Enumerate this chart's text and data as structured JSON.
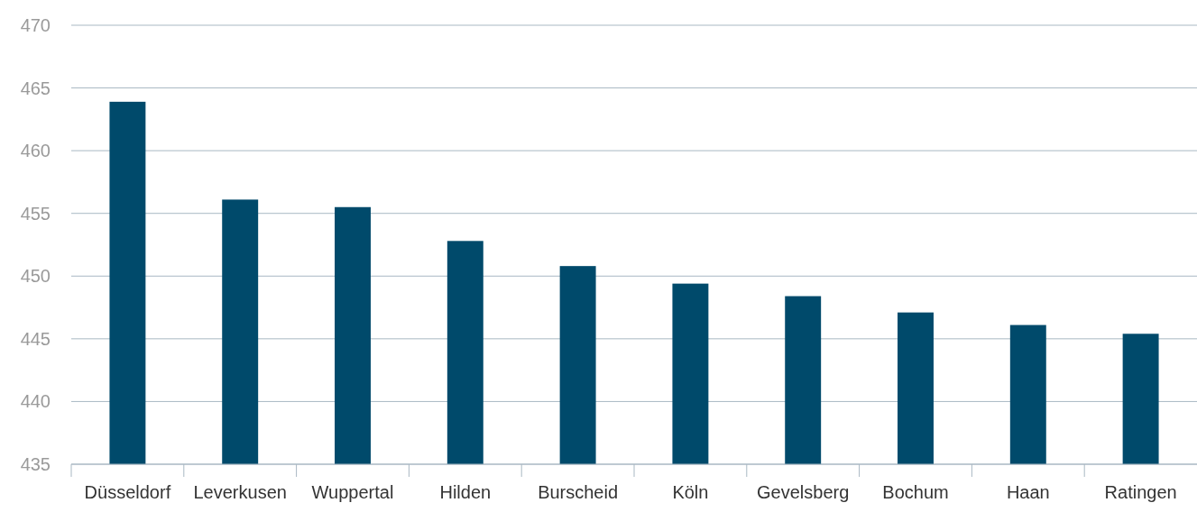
{
  "chart_data": {
    "type": "bar",
    "categories": [
      "Düsseldorf",
      "Leverkusen",
      "Wuppertal",
      "Hilden",
      "Burscheid",
      "Köln",
      "Gevelsberg",
      "Bochum",
      "Haan",
      "Ratingen"
    ],
    "values": [
      463.9,
      456.1,
      455.5,
      452.8,
      450.8,
      449.4,
      448.4,
      447.1,
      446.1,
      445.4
    ],
    "color": "#004a6b",
    "ylim": [
      435,
      470
    ],
    "yticks": [
      435,
      440,
      445,
      450,
      455,
      460,
      465,
      470
    ],
    "grid": "y"
  }
}
